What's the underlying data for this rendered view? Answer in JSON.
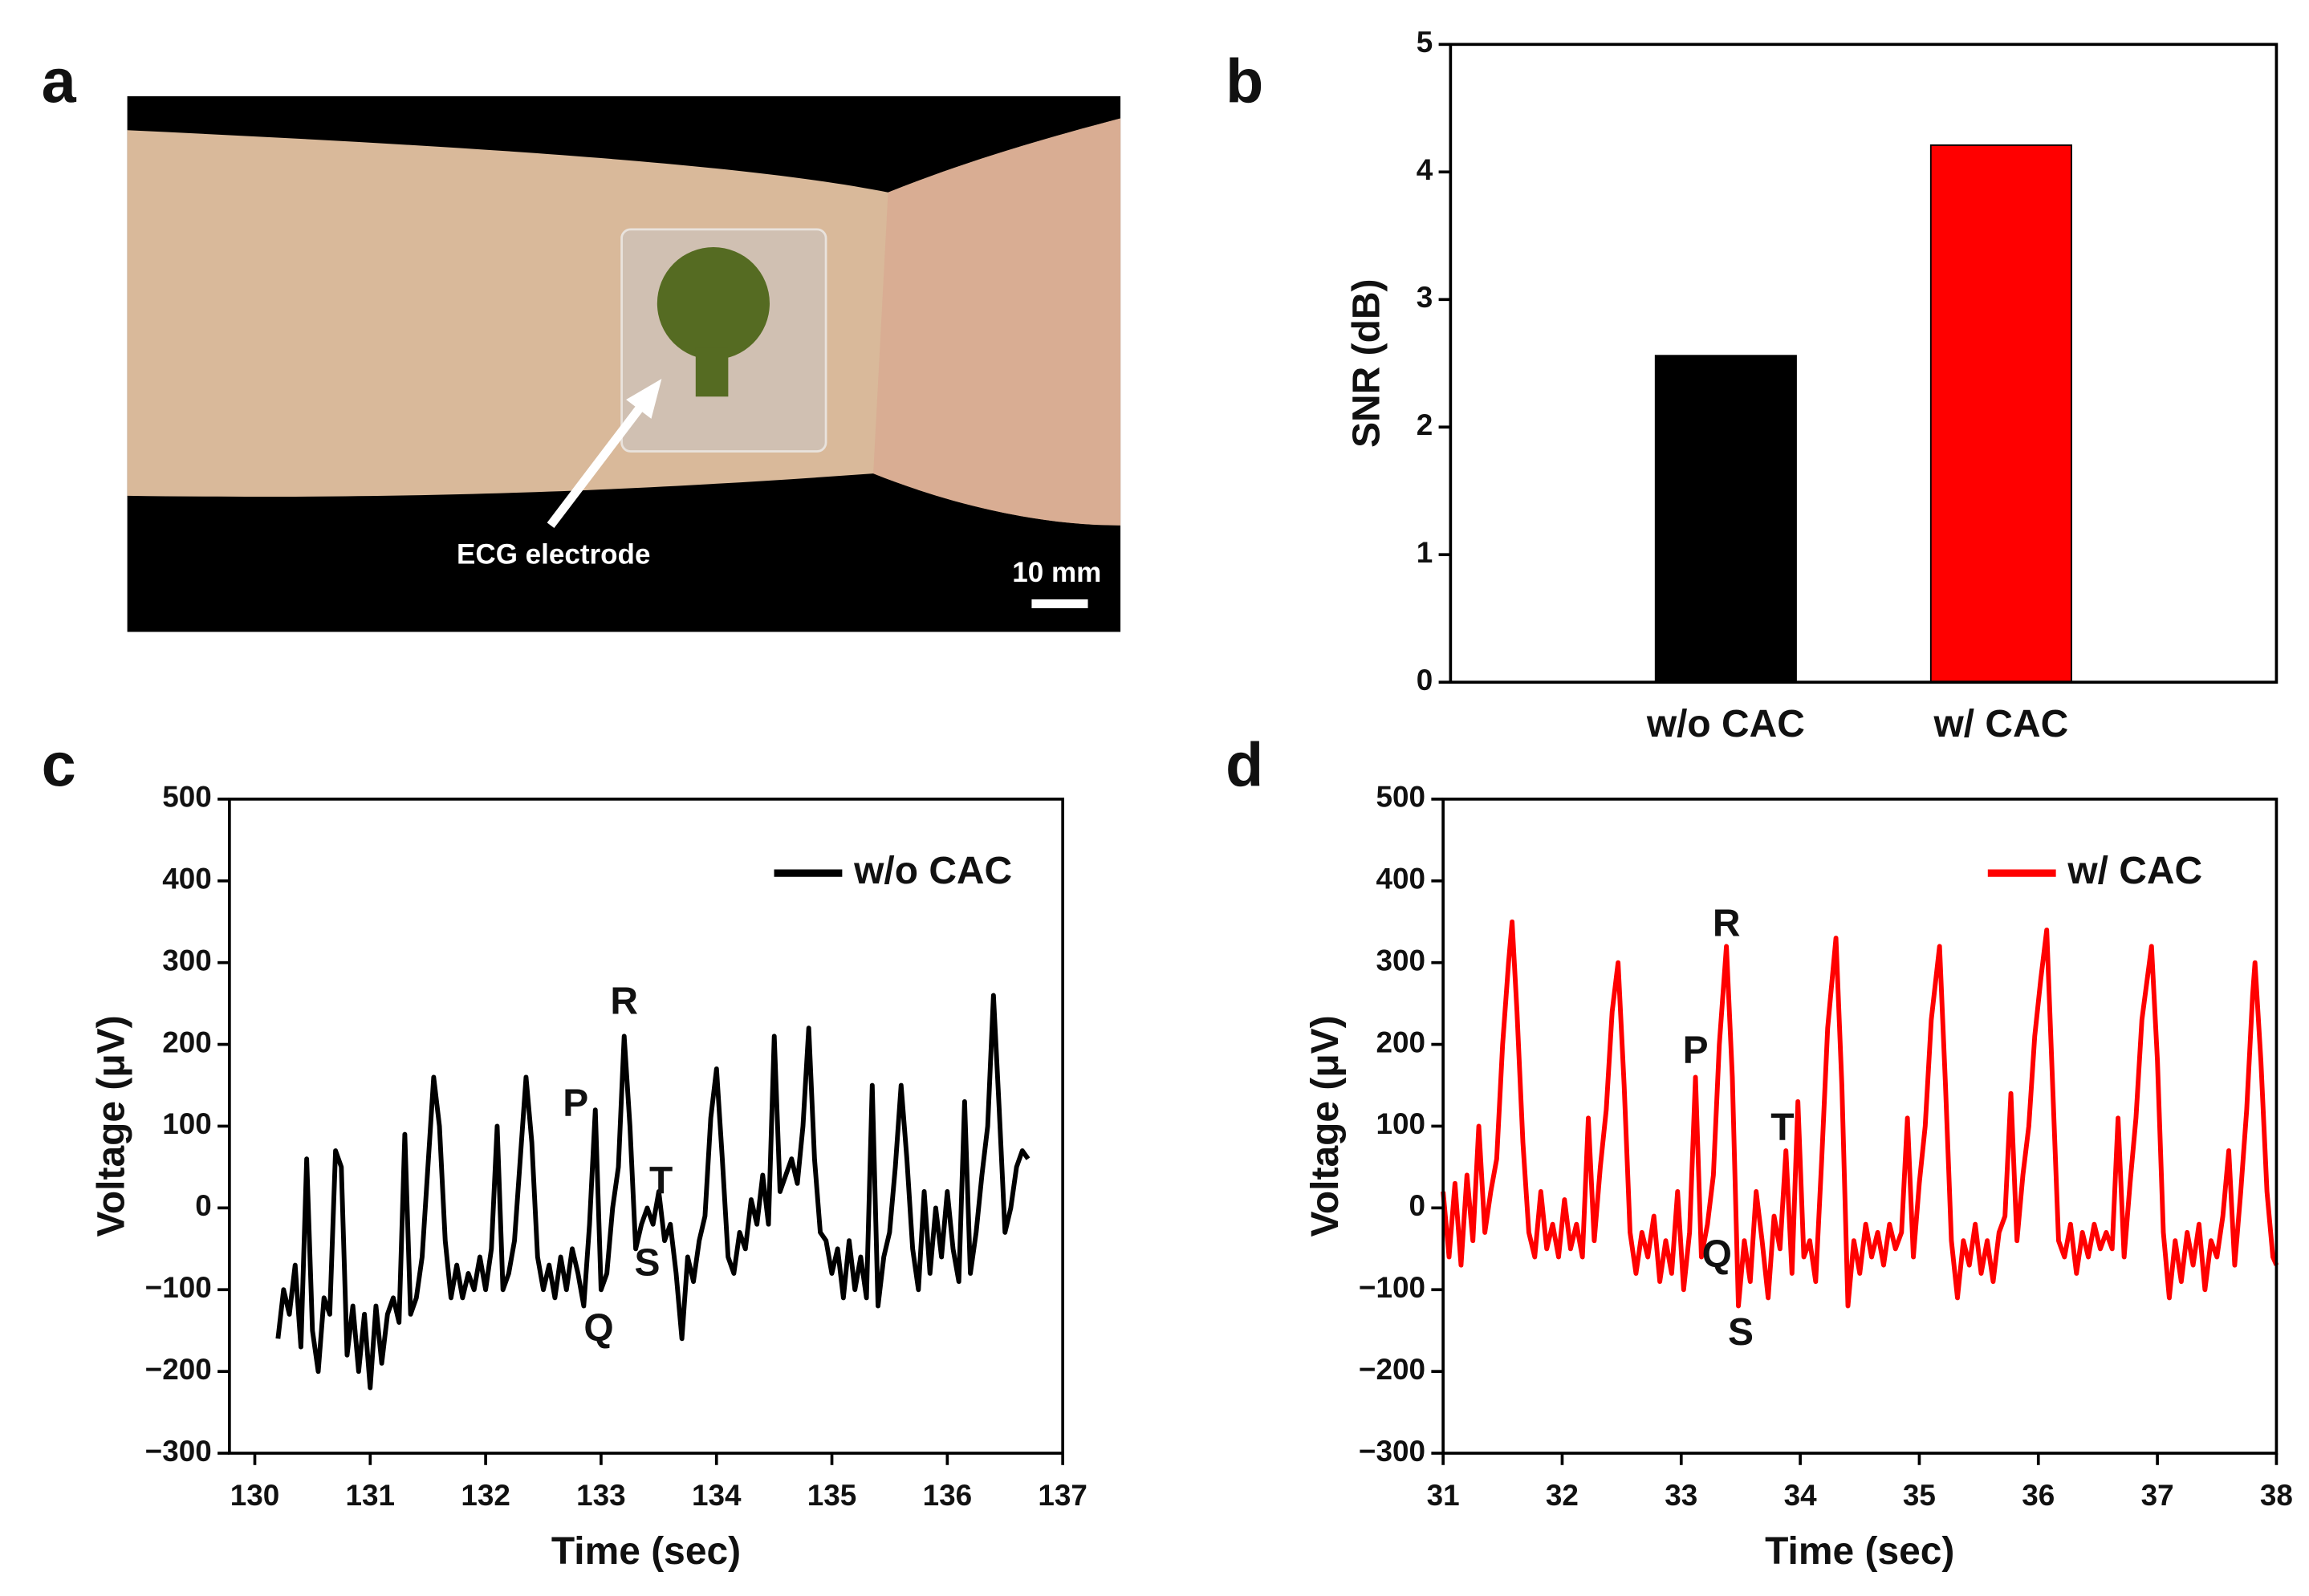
{
  "photo": {
    "label": "a",
    "annotation": "ECG electrode",
    "scale_bar": "10 mm"
  },
  "chart_data": [
    {
      "type": "bar",
      "label": "b",
      "ylabel": "SNR (dB)",
      "categories": [
        "w/o CAC",
        "w/ CAC"
      ],
      "values": [
        2.56,
        4.21
      ],
      "colors": [
        "#000000",
        "#ff0000"
      ],
      "ylim": [
        0,
        5
      ],
      "yticks": [
        0,
        1,
        2,
        3,
        4,
        5
      ]
    },
    {
      "type": "line",
      "label": "c",
      "xlabel": "Time (sec)",
      "ylabel": "Voltage (μV)",
      "xlim": [
        129.78,
        137
      ],
      "xticks": [
        130,
        131,
        132,
        133,
        134,
        135,
        136,
        137
      ],
      "ylim": [
        -300,
        500
      ],
      "yticks": [
        {
          "value": -300,
          "label": "−300"
        },
        {
          "value": -200,
          "label": "−200"
        },
        {
          "value": -100,
          "label": "−100"
        },
        0,
        100,
        200,
        300,
        400,
        500
      ],
      "legend": "upper right",
      "annotations": [
        {
          "text": "R",
          "x": 133.2,
          "y": 250
        },
        {
          "text": "P",
          "x": 132.78,
          "y": 125
        },
        {
          "text": "T",
          "x": 133.52,
          "y": 30
        },
        {
          "text": "S",
          "x": 133.4,
          "y": -70
        },
        {
          "text": "Q",
          "x": 132.98,
          "y": -150
        }
      ],
      "x": [
        130.2,
        130.25,
        130.3,
        130.35,
        130.4,
        130.45,
        130.5,
        130.55,
        130.6,
        130.65,
        130.7,
        130.75,
        130.8,
        130.85,
        130.9,
        130.95,
        131.0,
        131.05,
        131.1,
        131.15,
        131.2,
        131.25,
        131.3,
        131.35,
        131.4,
        131.45,
        131.5,
        131.55,
        131.6,
        131.65,
        131.7,
        131.75,
        131.8,
        131.85,
        131.9,
        131.95,
        132.0,
        132.05,
        132.1,
        132.15,
        132.2,
        132.25,
        132.3,
        132.35,
        132.4,
        132.45,
        132.5,
        132.55,
        132.6,
        132.65,
        132.7,
        132.75,
        132.8,
        132.85,
        132.9,
        132.95,
        133.0,
        133.05,
        133.1,
        133.15,
        133.2,
        133.25,
        133.3,
        133.35,
        133.4,
        133.45,
        133.5,
        133.55,
        133.6,
        133.65,
        133.7,
        133.75,
        133.8,
        133.85,
        133.9,
        133.95,
        134.0,
        134.05,
        134.1,
        134.15,
        134.2,
        134.25,
        134.3,
        134.35,
        134.4,
        134.45,
        134.5,
        134.55,
        134.6,
        134.65,
        134.7,
        134.75,
        134.8,
        134.85,
        134.9,
        134.95,
        135.0,
        135.05,
        135.1,
        135.15,
        135.2,
        135.25,
        135.3,
        135.35,
        135.4,
        135.45,
        135.5,
        135.55,
        135.6,
        135.65,
        135.7,
        135.75,
        135.8,
        135.85,
        135.9,
        135.95,
        136.0,
        136.05,
        136.1,
        136.15,
        136.2,
        136.25,
        136.3,
        136.35,
        136.4,
        136.45,
        136.5,
        136.55,
        136.6,
        136.65,
        136.7
      ],
      "series": [
        {
          "name": "w/o CAC",
          "color": "#000000",
          "values": [
            -160,
            -100,
            -130,
            -70,
            -170,
            60,
            -150,
            -200,
            -110,
            -130,
            70,
            50,
            -180,
            -120,
            -200,
            -130,
            -220,
            -120,
            -190,
            -130,
            -110,
            -140,
            90,
            -130,
            -110,
            -60,
            50,
            160,
            100,
            -40,
            -110,
            -70,
            -110,
            -80,
            -100,
            -60,
            -100,
            -50,
            100,
            -100,
            -80,
            -40,
            60,
            160,
            80,
            -60,
            -100,
            -70,
            -110,
            -60,
            -100,
            -50,
            -80,
            -120,
            -20,
            120,
            -100,
            -80,
            0,
            50,
            210,
            100,
            -50,
            -20,
            0,
            -20,
            20,
            -40,
            -20,
            -80,
            -160,
            -60,
            -90,
            -40,
            -10,
            110,
            170,
            60,
            -60,
            -80,
            -30,
            -50,
            10,
            -20,
            40,
            -20,
            210,
            20,
            40,
            60,
            30,
            100,
            220,
            60,
            -30,
            -40,
            -80,
            -50,
            -110,
            -40,
            -100,
            -60,
            -110,
            150,
            -120,
            -60,
            -30,
            50,
            150,
            60,
            -50,
            -100,
            20,
            -80,
            0,
            -60,
            20,
            -50,
            -90,
            130,
            -80,
            -30,
            40,
            100,
            260,
            120,
            -30,
            0,
            50,
            70,
            60
          ]
        }
      ]
    },
    {
      "type": "line",
      "label": "d",
      "xlabel": "Time (sec)",
      "ylabel": "Voltage (μV)",
      "xlim": [
        31,
        38
      ],
      "xticks": [
        31,
        32,
        33,
        34,
        35,
        36,
        37,
        38
      ],
      "ylim": [
        -300,
        500
      ],
      "yticks": [
        {
          "value": -300,
          "label": "−300"
        },
        {
          "value": -200,
          "label": "−200"
        },
        {
          "value": -100,
          "label": "−100"
        },
        0,
        100,
        200,
        300,
        400,
        500
      ],
      "legend": "upper right",
      "annotations": [
        {
          "text": "R",
          "x": 33.38,
          "y": 345
        },
        {
          "text": "P",
          "x": 33.12,
          "y": 190
        },
        {
          "text": "T",
          "x": 33.85,
          "y": 95
        },
        {
          "text": "Q",
          "x": 33.3,
          "y": -60
        },
        {
          "text": "S",
          "x": 33.5,
          "y": -155
        }
      ],
      "x": [
        31.0,
        31.05,
        31.1,
        31.15,
        31.2,
        31.25,
        31.3,
        31.35,
        31.4,
        31.45,
        31.5,
        31.55,
        31.58,
        31.62,
        31.67,
        31.72,
        31.77,
        31.82,
        31.87,
        31.92,
        31.97,
        32.02,
        32.07,
        32.12,
        32.17,
        32.22,
        32.27,
        32.32,
        32.37,
        32.42,
        32.47,
        32.52,
        32.57,
        32.62,
        32.67,
        32.72,
        32.77,
        32.82,
        32.87,
        32.92,
        32.97,
        33.02,
        33.07,
        33.12,
        33.17,
        33.22,
        33.27,
        33.32,
        33.38,
        33.43,
        33.48,
        33.53,
        33.58,
        33.63,
        33.68,
        33.73,
        33.78,
        33.83,
        33.88,
        33.93,
        33.98,
        34.03,
        34.08,
        34.13,
        34.18,
        34.23,
        34.3,
        34.35,
        34.4,
        34.45,
        34.5,
        34.55,
        34.6,
        34.65,
        34.7,
        34.75,
        34.8,
        34.85,
        34.9,
        34.95,
        35.0,
        35.05,
        35.1,
        35.17,
        35.22,
        35.27,
        35.32,
        35.37,
        35.42,
        35.47,
        35.52,
        35.57,
        35.62,
        35.67,
        35.72,
        35.77,
        35.82,
        35.87,
        35.92,
        35.97,
        36.02,
        36.07,
        36.12,
        36.17,
        36.22,
        36.27,
        36.32,
        36.37,
        36.42,
        36.47,
        36.52,
        36.57,
        36.62,
        36.67,
        36.72,
        36.77,
        36.82,
        36.87,
        36.95,
        37.0,
        37.05,
        37.1,
        37.15,
        37.2,
        37.25,
        37.3,
        37.35,
        37.4,
        37.45,
        37.5,
        37.55,
        37.6,
        37.65,
        37.7,
        37.75,
        37.8,
        37.82,
        37.87,
        37.92,
        37.97,
        38.0
      ],
      "series": [
        {
          "name": "w/ CAC",
          "color": "#ff0000",
          "values": [
            20,
            -60,
            30,
            -70,
            40,
            -40,
            100,
            -30,
            20,
            60,
            200,
            300,
            350,
            240,
            80,
            -30,
            -60,
            20,
            -50,
            -20,
            -60,
            10,
            -50,
            -20,
            -60,
            110,
            -40,
            50,
            120,
            240,
            300,
            150,
            -30,
            -80,
            -30,
            -60,
            -10,
            -90,
            -40,
            -80,
            20,
            -100,
            -30,
            160,
            -60,
            -20,
            40,
            200,
            320,
            160,
            -120,
            -40,
            -90,
            20,
            -40,
            -110,
            -10,
            -50,
            70,
            -80,
            130,
            -60,
            -40,
            -90,
            60,
            220,
            330,
            150,
            -120,
            -40,
            -80,
            -20,
            -60,
            -30,
            -70,
            -20,
            -50,
            -30,
            110,
            -60,
            30,
            100,
            230,
            320,
            150,
            -40,
            -110,
            -40,
            -70,
            -20,
            -80,
            -40,
            -90,
            -30,
            -10,
            140,
            -40,
            40,
            100,
            210,
            280,
            340,
            150,
            -40,
            -60,
            -20,
            -80,
            -30,
            -60,
            -20,
            -50,
            -30,
            -50,
            110,
            -60,
            30,
            110,
            230,
            320,
            180,
            -30,
            -110,
            -40,
            -90,
            -30,
            -70,
            -20,
            -100,
            -40,
            -60,
            -10,
            70,
            -70,
            20,
            120,
            260,
            300,
            180,
            20,
            -60,
            -70
          ]
        }
      ]
    }
  ]
}
